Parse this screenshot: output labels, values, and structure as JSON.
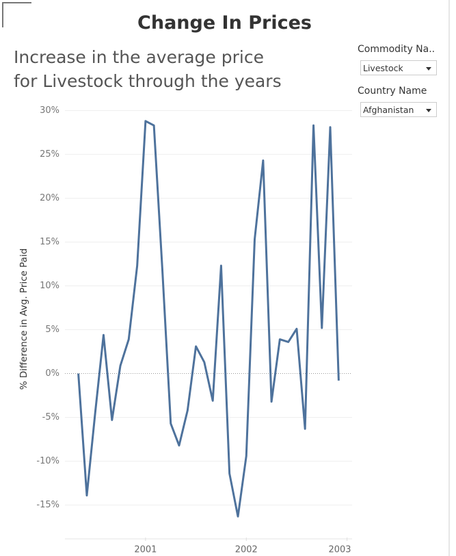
{
  "dashboard": {
    "title": "Change In Prices",
    "filters": [
      {
        "label": "Commodity Na..",
        "value": "Livestock"
      },
      {
        "label": "Country Name",
        "value": "Afghanistan"
      }
    ]
  },
  "chart_data": {
    "type": "line",
    "title": "Increase in the average price for Livestock through the years",
    "y_label": "% Difference in Avg. Price Paid",
    "x": [
      2000.333,
      2000.417,
      2000.5,
      2000.583,
      2000.667,
      2000.75,
      2000.833,
      2000.917,
      2001,
      2001.083,
      2001.167,
      2001.25,
      2001.333,
      2001.417,
      2001.5,
      2001.583,
      2001.667,
      2001.75,
      2001.833,
      2001.917,
      2002,
      2002.083,
      2002.167,
      2002.25,
      2002.333,
      2002.417,
      2002.5,
      2002.583,
      2002.667,
      2002.75,
      2002.833,
      2002.917
    ],
    "values": [
      0,
      -13.9,
      -4.5,
      4.4,
      -5.3,
      0.9,
      3.9,
      12.3,
      28.8,
      28.3,
      11.8,
      -5.7,
      -8.2,
      -4.2,
      3.1,
      1.3,
      -3.1,
      12.3,
      -11.4,
      -16.3,
      -9.4,
      15.3,
      24.3,
      -3.2,
      3.9,
      3.6,
      5.1,
      -6.3,
      28.3,
      5.2,
      28.1,
      -0.8
    ],
    "color": "#4e729c",
    "xlim": [
      2000.2,
      2003.05
    ],
    "xticks": [
      2001,
      2002,
      2003
    ],
    "ylim": [
      -18.7,
      30.5
    ],
    "yticks": [
      {
        "value": -15,
        "label": "-15%"
      },
      {
        "value": -10,
        "label": "-10%"
      },
      {
        "value": -5,
        "label": "-5%"
      },
      {
        "value": 0,
        "label": "0%"
      },
      {
        "value": 5,
        "label": "5%"
      },
      {
        "value": 10,
        "label": "10%"
      },
      {
        "value": 15,
        "label": "15%"
      },
      {
        "value": 20,
        "label": "20%"
      },
      {
        "value": 25,
        "label": "25%"
      },
      {
        "value": 30,
        "label": "30%"
      }
    ],
    "grid": true
  }
}
